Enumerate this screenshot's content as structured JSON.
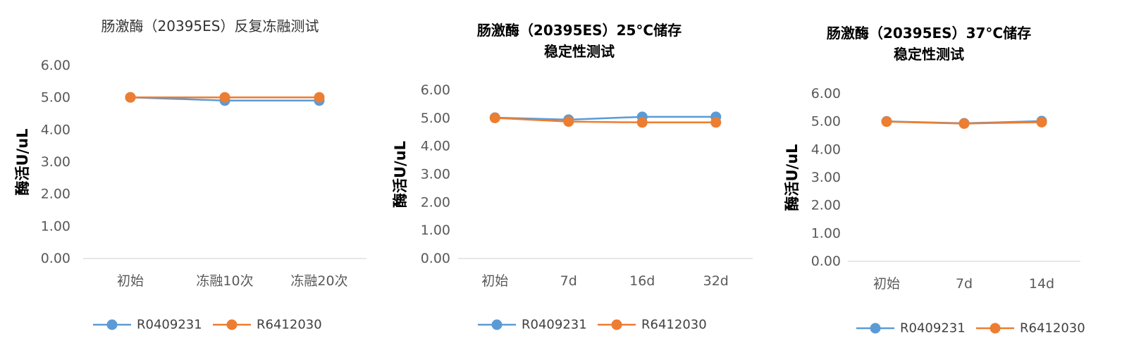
{
  "colors": {
    "series1": "#5B9BD5",
    "series2": "#ED7D31",
    "axis": "#D9D9D9"
  },
  "chart_data": [
    {
      "type": "line",
      "title": "肠激酶（20395ES）反复冻融测试",
      "title_lines": [
        "肠激酶（20395ES）反复冻融测试"
      ],
      "title_style": "normal",
      "ylabel": "酶活U/uL",
      "categories": [
        "初始",
        "冻融10次",
        "冻融20次"
      ],
      "yticks": [
        "0.00",
        "1.00",
        "2.00",
        "3.00",
        "4.00",
        "5.00",
        "6.00"
      ],
      "ylim": [
        0,
        6
      ],
      "grid": false,
      "legend_position": "bottom",
      "series": [
        {
          "name": "R0409231",
          "values": [
            5.01,
            4.91,
            4.91
          ]
        },
        {
          "name": "R6412030",
          "values": [
            5.01,
            5.01,
            5.01
          ]
        }
      ]
    },
    {
      "type": "line",
      "title": "肠激酶（20395ES）25°C储存稳定性测试",
      "title_lines": [
        "肠激酶（20395ES）25°C储存",
        "稳定性测试"
      ],
      "title_style": "bold",
      "ylabel": "酶活U/uL",
      "categories": [
        "初始",
        "7d",
        "16d",
        "32d"
      ],
      "yticks": [
        "0.00",
        "1.00",
        "2.00",
        "3.00",
        "4.00",
        "5.00",
        "6.00"
      ],
      "ylim": [
        0,
        6
      ],
      "grid": false,
      "legend_position": "bottom",
      "series": [
        {
          "name": "R0409231",
          "values": [
            5.02,
            4.95,
            5.05,
            5.05
          ]
        },
        {
          "name": "R6412030",
          "values": [
            5.01,
            4.88,
            4.85,
            4.85
          ]
        }
      ]
    },
    {
      "type": "line",
      "title": "肠激酶（20395ES）37°C储存稳定性测试",
      "title_lines": [
        "肠激酶（20395ES）37°C储存",
        "稳定性测试"
      ],
      "title_style": "bold",
      "ylabel": "酶活U/uL",
      "categories": [
        "初始",
        "7d",
        "14d"
      ],
      "yticks": [
        "0.00",
        "1.00",
        "2.00",
        "3.00",
        "4.00",
        "5.00",
        "6.00"
      ],
      "ylim": [
        0,
        6
      ],
      "grid": false,
      "legend_position": "bottom",
      "series": [
        {
          "name": "R0409231",
          "values": [
            5.01,
            4.94,
            5.02
          ]
        },
        {
          "name": "R6412030",
          "values": [
            5.0,
            4.93,
            4.98
          ]
        }
      ]
    }
  ]
}
